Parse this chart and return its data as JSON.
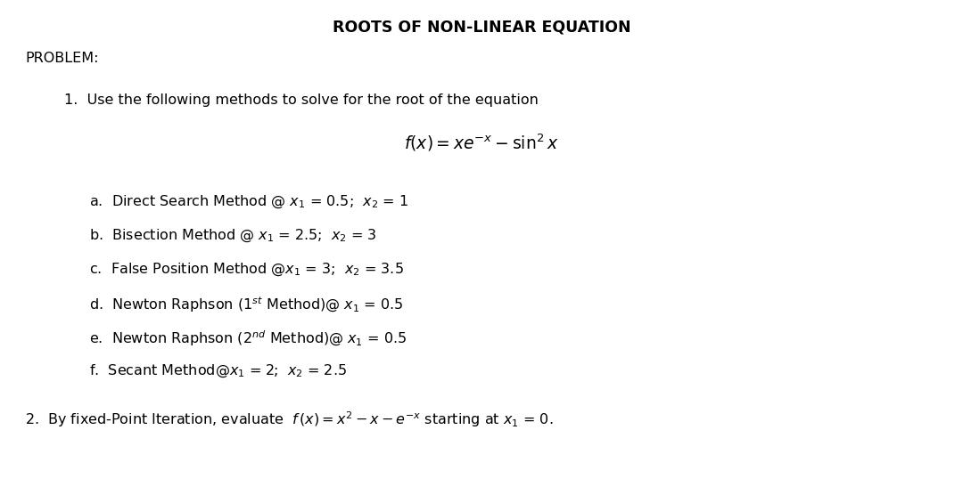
{
  "title": "ROOTS OF NON-LINEAR EQUATION",
  "background_color": "#ffffff",
  "text_color": "#000000",
  "title_fontsize": 12.5,
  "body_fontsize": 11.5,
  "eq_fontsize": 13.5,
  "problem_label": "PROBLEM:",
  "item1_intro": "1.  Use the following methods to solve for the root of the equation",
  "equation1": "$f(x) = xe^{-x} - \\sin^2 x$",
  "items_a_f": [
    "a.  Direct Search Method @ $x_1$ = 0.5;  $x_2$ = 1",
    "b.  Bisection Method @ $x_1$ = 2.5;  $x_2$ = 3",
    "c.  False Position Method @$x_1$ = 3;  $x_2$ = 3.5",
    "d.  Newton Raphson (1$^{st}$ Method)@ $x_1$ = 0.5",
    "e.  Newton Raphson (2$^{nd}$ Method)@ $x_1$ = 0.5",
    "f.  Secant Method@$x_1$ = 2;  $x_2$ = 2.5"
  ],
  "item2": "2.  By fixed-Point Iteration, evaluate  $f\\,(x)= x^2 - x - e^{-x}$ starting at $x_1$ = 0."
}
